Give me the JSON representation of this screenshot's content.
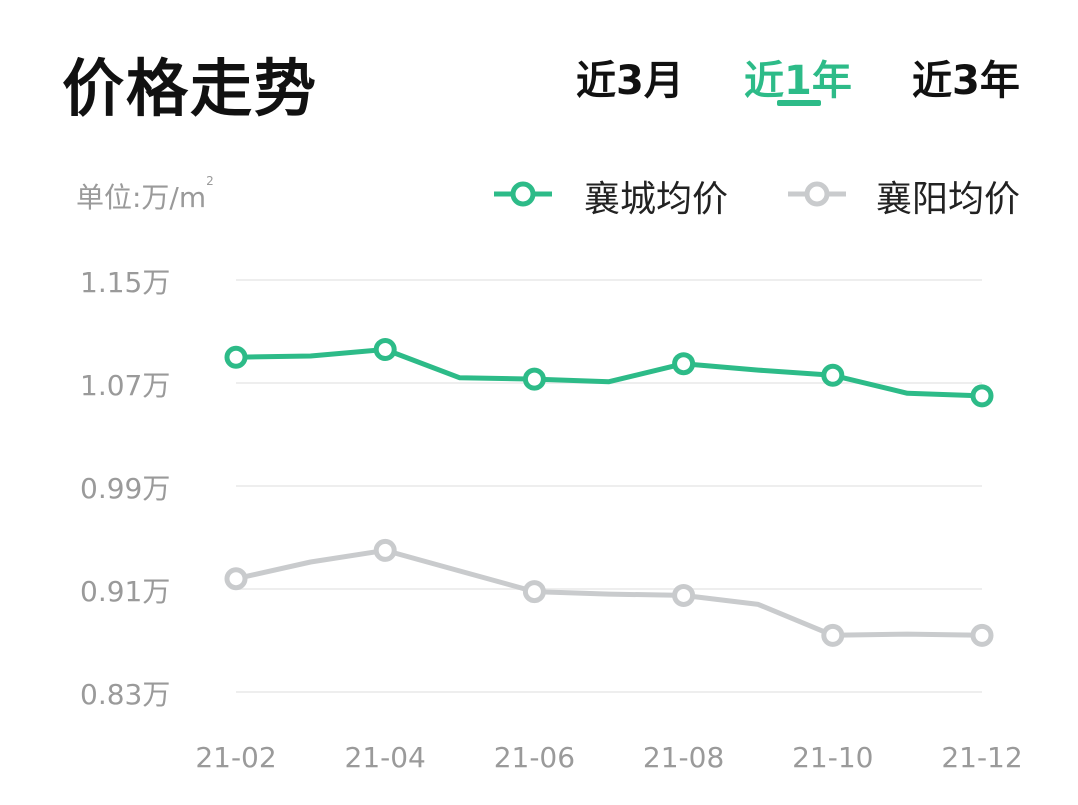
{
  "header": {
    "title": "价格走势",
    "tabs": [
      {
        "label": "近3月",
        "active": false
      },
      {
        "label": "近1年",
        "active": true
      },
      {
        "label": "近3年",
        "active": false
      }
    ]
  },
  "unit_label": "单位:万/m",
  "unit_superscript": "2",
  "colors": {
    "accent": "#2dbb88",
    "secondary_series": "#c9cbcd",
    "grid": "#eeeeee",
    "axis_text": "#9a9a9a"
  },
  "chart_data": {
    "type": "line",
    "title": "",
    "xlabel": "",
    "ylabel": "",
    "ylim": [
      0.83,
      1.15
    ],
    "yticks": [
      "1.15万",
      "1.07万",
      "0.99万",
      "0.91万",
      "0.83万"
    ],
    "ytick_values": [
      1.15,
      1.07,
      0.99,
      0.91,
      0.83
    ],
    "x": [
      "21-02",
      "21-03",
      "21-04",
      "21-05",
      "21-06",
      "21-07",
      "21-08",
      "21-09",
      "21-10",
      "21-11",
      "21-12"
    ],
    "xtick_labels": [
      "21-02",
      "21-04",
      "21-06",
      "21-08",
      "21-10",
      "21-12"
    ],
    "marker_every": 2,
    "legend_position": "top-right",
    "grid": true,
    "series": [
      {
        "name": "襄城均价",
        "color": "#2dbb88",
        "values": [
          1.09,
          1.091,
          1.096,
          1.074,
          1.073,
          1.071,
          1.085,
          1.08,
          1.076,
          1.062,
          1.06
        ]
      },
      {
        "name": "襄阳均价",
        "color": "#c9cbcd",
        "values": [
          0.918,
          0.931,
          0.94,
          0.924,
          0.908,
          0.906,
          0.905,
          0.898,
          0.874,
          0.875,
          0.874
        ]
      }
    ]
  }
}
